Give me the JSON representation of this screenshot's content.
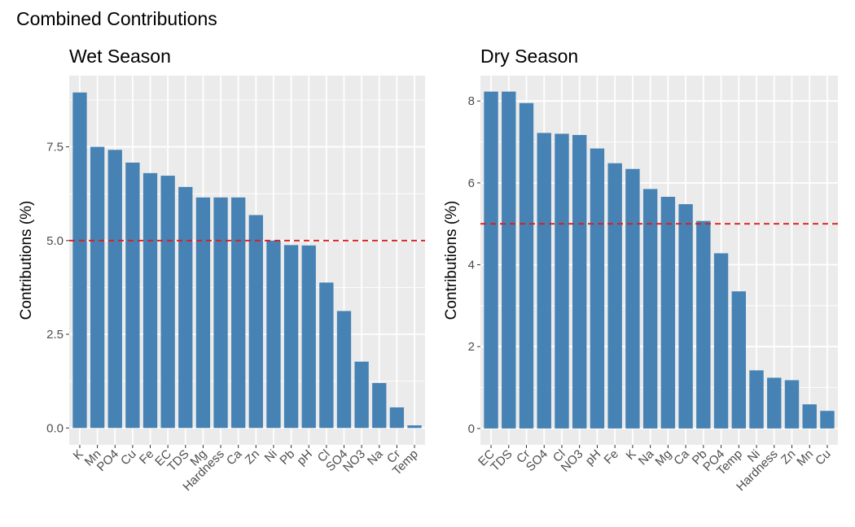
{
  "title": "Combined Contributions",
  "colors": {
    "bar": "#4682b4",
    "reference_line": "#dd1c1c",
    "panel_background": "#ebebeb",
    "grid": "#ffffff",
    "tick_text": "#4d4d4d"
  },
  "chart_data": [
    {
      "type": "bar",
      "title": "Wet Season",
      "xlabel": "",
      "ylabel": "Contributions (%)",
      "categories": [
        "K",
        "Mn",
        "PO4",
        "Cu",
        "Fe",
        "EC",
        "TDS",
        "Mg",
        "Hardness",
        "Ca",
        "Zn",
        "Ni",
        "Pb",
        "pH",
        "Cl",
        "SO4",
        "NO3",
        "Na",
        "Cr",
        "Temp"
      ],
      "values": [
        8.95,
        7.5,
        7.42,
        7.08,
        6.8,
        6.73,
        6.43,
        6.15,
        6.15,
        6.15,
        5.68,
        5.0,
        4.88,
        4.87,
        3.88,
        3.12,
        1.77,
        1.2,
        0.55,
        0.07
      ],
      "yticks": [
        0.0,
        2.5,
        5.0,
        7.5
      ],
      "ytick_labels": [
        "0.0",
        "2.5",
        "5.0",
        "7.5"
      ],
      "ylim": [
        -0.45,
        9.4
      ],
      "reference_line": 5.0,
      "reference_line_style": "dashed",
      "grid": true,
      "legend": "none"
    },
    {
      "type": "bar",
      "title": "Dry Season",
      "xlabel": "",
      "ylabel": "Contributions (%)",
      "categories": [
        "EC",
        "TDS",
        "Cr",
        "SO4",
        "Cl",
        "NO3",
        "pH",
        "Fe",
        "K",
        "Na",
        "Mg",
        "Ca",
        "Pb",
        "PO4",
        "Temp",
        "Ni",
        "Hardness",
        "Zn",
        "Mn",
        "Cu"
      ],
      "values": [
        8.23,
        8.23,
        7.95,
        7.22,
        7.2,
        7.17,
        6.84,
        6.48,
        6.34,
        5.85,
        5.66,
        5.48,
        5.07,
        4.28,
        3.35,
        1.42,
        1.24,
        1.18,
        0.59,
        0.43
      ],
      "yticks": [
        0,
        2,
        4,
        6,
        8
      ],
      "ytick_labels": [
        "0",
        "2",
        "4",
        "6",
        "8"
      ],
      "ylim": [
        -0.4,
        8.62
      ],
      "reference_line": 5.0,
      "reference_line_style": "dashed",
      "grid": true,
      "legend": "none"
    }
  ]
}
